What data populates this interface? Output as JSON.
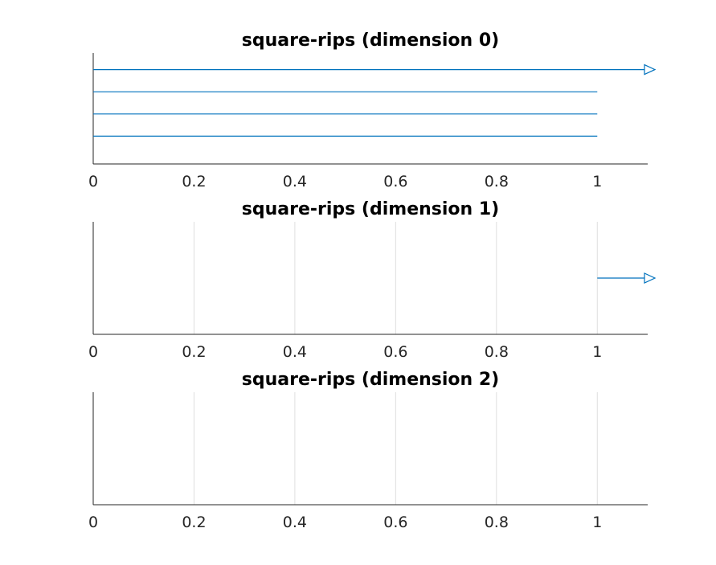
{
  "chart_data": [
    {
      "type": "barcode",
      "title": "square-rips (dimension 0)",
      "xlim": [
        0,
        1.1
      ],
      "xticks": [
        0,
        0.2,
        0.4,
        0.6,
        0.8,
        1
      ],
      "xtick_labels": [
        "0",
        "0.2",
        "0.4",
        "0.6",
        "0.8",
        "1"
      ],
      "grid": false,
      "series_color": "#0072bd",
      "intervals": [
        {
          "birth": 0,
          "death": null
        },
        {
          "birth": 0,
          "death": 1
        },
        {
          "birth": 0,
          "death": 1
        },
        {
          "birth": 0,
          "death": 1
        }
      ]
    },
    {
      "type": "barcode",
      "title": "square-rips (dimension 1)",
      "xlim": [
        0,
        1.1
      ],
      "xticks": [
        0,
        0.2,
        0.4,
        0.6,
        0.8,
        1
      ],
      "xtick_labels": [
        "0",
        "0.2",
        "0.4",
        "0.6",
        "0.8",
        "1"
      ],
      "grid": true,
      "series_color": "#0072bd",
      "intervals": [
        {
          "birth": 1,
          "death": null
        }
      ]
    },
    {
      "type": "barcode",
      "title": "square-rips (dimension 2)",
      "xlim": [
        0,
        1.1
      ],
      "xticks": [
        0,
        0.2,
        0.4,
        0.6,
        0.8,
        1
      ],
      "xtick_labels": [
        "0",
        "0.2",
        "0.4",
        "0.6",
        "0.8",
        "1"
      ],
      "grid": true,
      "series_color": "#0072bd",
      "intervals": []
    }
  ]
}
